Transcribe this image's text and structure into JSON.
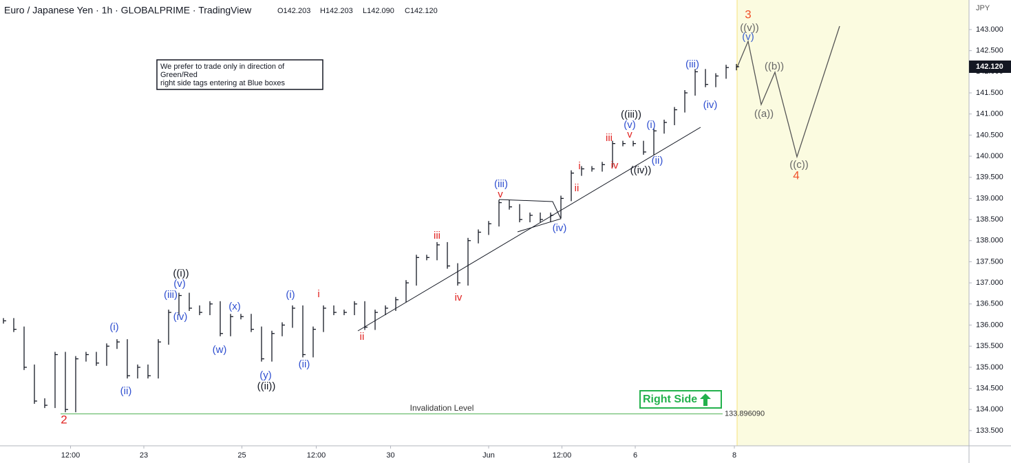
{
  "chart_data": {
    "type": "ohlc",
    "title": "Euro / Japanese Yen · 1h · GLOBALPRIME · TradingView",
    "ohlc_text": [
      "O142.203",
      "H142.203",
      "L142.090",
      "C142.120"
    ],
    "currency": "JPY",
    "note_lines": [
      "We prefer to trade only in direction of",
      "Green/Red",
      "right side tags entering at Blue boxes"
    ],
    "badge": "Right Side",
    "color": "#131722",
    "x": [
      0,
      1,
      2,
      3,
      4,
      5,
      6,
      7,
      8,
      9,
      10,
      11,
      12,
      13,
      14,
      15,
      16,
      17,
      18,
      19,
      20,
      21,
      22,
      23,
      24,
      25,
      26,
      27,
      28,
      29,
      30,
      31,
      32,
      33,
      34,
      35,
      36,
      37,
      38,
      39,
      40,
      41,
      42,
      43,
      44,
      45,
      46,
      47,
      48,
      49,
      50,
      51,
      52,
      53,
      54,
      55,
      56,
      57,
      58,
      59,
      60,
      61,
      62,
      63,
      64,
      65,
      66,
      67,
      68,
      69,
      70,
      71
    ],
    "values": [
      136.1,
      135.9,
      135.0,
      134.2,
      134.1,
      135.3,
      134.0,
      135.2,
      135.3,
      135.1,
      135.5,
      135.6,
      134.8,
      135.0,
      134.8,
      135.6,
      136.3,
      136.7,
      136.4,
      136.3,
      136.5,
      135.8,
      136.2,
      136.2,
      135.9,
      135.2,
      135.8,
      136.0,
      136.4,
      135.3,
      135.9,
      136.4,
      136.3,
      136.3,
      136.5,
      135.95,
      136.3,
      136.4,
      136.6,
      137.0,
      137.6,
      137.6,
      137.9,
      137.4,
      137.0,
      138.0,
      138.2,
      138.4,
      138.9,
      138.8,
      138.5,
      138.6,
      138.5,
      138.6,
      139.0,
      139.6,
      139.7,
      139.7,
      139.8,
      140.3,
      140.3,
      140.3,
      140.1,
      140.6,
      140.8,
      141.1,
      141.5,
      142.0,
      141.7,
      141.9,
      142.1,
      142.12
    ],
    "xlim": [
      -0.333,
      93.53
    ],
    "xticks": [
      {
        "value": 6.5,
        "label": "12:00"
      },
      {
        "value": 13.6,
        "label": "23"
      },
      {
        "value": 23.1,
        "label": "25"
      },
      {
        "value": 30.3,
        "label": "12:00"
      },
      {
        "value": 37.5,
        "label": "30"
      },
      {
        "value": 47,
        "label": "Jun"
      },
      {
        "value": 54.1,
        "label": "12:00"
      },
      {
        "value": 61.2,
        "label": "6"
      },
      {
        "value": 70.8,
        "label": "8"
      }
    ],
    "ylim": [
      133.14,
      143.7
    ],
    "yticks": [
      {
        "value": 133.5,
        "label": "133.500"
      },
      {
        "value": 134.0,
        "label": "134.000"
      },
      {
        "value": 134.5,
        "label": "134.500"
      },
      {
        "value": 135.0,
        "label": "135.000"
      },
      {
        "value": 135.5,
        "label": "135.500"
      },
      {
        "value": 136.0,
        "label": "136.000"
      },
      {
        "value": 136.5,
        "label": "136.500"
      },
      {
        "value": 137.0,
        "label": "137.000"
      },
      {
        "value": 137.5,
        "label": "137.500"
      },
      {
        "value": 138.0,
        "label": "138.000"
      },
      {
        "value": 138.5,
        "label": "138.500"
      },
      {
        "value": 139.0,
        "label": "139.000"
      },
      {
        "value": 139.5,
        "label": "139.500"
      },
      {
        "value": 140.0,
        "label": "140.000"
      },
      {
        "value": 140.5,
        "label": "140.500"
      },
      {
        "value": 141.0,
        "label": "141.000"
      },
      {
        "value": 141.5,
        "label": "141.500"
      },
      {
        "value": 142.0,
        "label": "142.000"
      },
      {
        "value": 142.5,
        "label": "142.500"
      },
      {
        "value": 143.0,
        "label": "143.000"
      }
    ],
    "grid": false,
    "last_price": {
      "value": 142.12,
      "label": "142.120"
    },
    "invalidation": {
      "value": 133.89609,
      "label": "133.896090",
      "text": "Invalidation Level",
      "color": "#4caf50"
    },
    "annotations": [
      {
        "text": "3",
        "color": "#f0522a"
      },
      {
        "text": "((v))",
        "color": "#666666"
      },
      {
        "text": "(v)",
        "color": "#3a5fcd"
      },
      {
        "text": "(iii)",
        "color": "#2f4fd0"
      },
      {
        "text": "((b))",
        "color": "#666666"
      },
      {
        "text": "(iv)",
        "color": "#2f4fd0"
      },
      {
        "text": "((a))",
        "color": "#666666"
      },
      {
        "text": "((iii))",
        "color": "#131722"
      },
      {
        "text": "(v)",
        "color": "#2f4fd0"
      },
      {
        "text": "(i)",
        "color": "#2f4fd0"
      },
      {
        "text": "iii",
        "color": "#e0201e"
      },
      {
        "text": "v",
        "color": "#e0201e"
      },
      {
        "text": "i",
        "color": "#e0201e"
      },
      {
        "text": "iv",
        "color": "#e0201e"
      },
      {
        "text": "ii",
        "color": "#e0201e"
      },
      {
        "text": "((iv))",
        "color": "#131722"
      },
      {
        "text": "(ii)",
        "color": "#2f4fd0"
      },
      {
        "text": "((c))",
        "color": "#666666"
      },
      {
        "text": "4",
        "color": "#f0522a"
      },
      {
        "text": "(iii)",
        "color": "#2f4fd0"
      },
      {
        "text": "v",
        "color": "#e0201e"
      },
      {
        "text": "(iv)",
        "color": "#2f4fd0"
      },
      {
        "text": "iii",
        "color": "#e0201e"
      },
      {
        "text": "iv",
        "color": "#e0201e"
      },
      {
        "text": "((i))",
        "color": "#131722"
      },
      {
        "text": "(v)",
        "color": "#2f4fd0"
      },
      {
        "text": "(iii)",
        "color": "#2f4fd0"
      },
      {
        "text": "(iv)",
        "color": "#2f4fd0"
      },
      {
        "text": "(x)",
        "color": "#2f4fd0"
      },
      {
        "text": "(i)",
        "color": "#2f4fd0"
      },
      {
        "text": "i",
        "color": "#e0201e"
      },
      {
        "text": "(i)",
        "color": "#2f4fd0"
      },
      {
        "text": "(w)",
        "color": "#2f4fd0"
      },
      {
        "text": "ii",
        "color": "#e0201e"
      },
      {
        "text": "(ii)",
        "color": "#2f4fd0"
      },
      {
        "text": "(ii)",
        "color": "#2f4fd0"
      },
      {
        "text": "(y)",
        "color": "#2f4fd0"
      },
      {
        "text": "((ii))",
        "color": "#131722"
      },
      {
        "text": "2",
        "color": "#e0201e"
      }
    ]
  }
}
